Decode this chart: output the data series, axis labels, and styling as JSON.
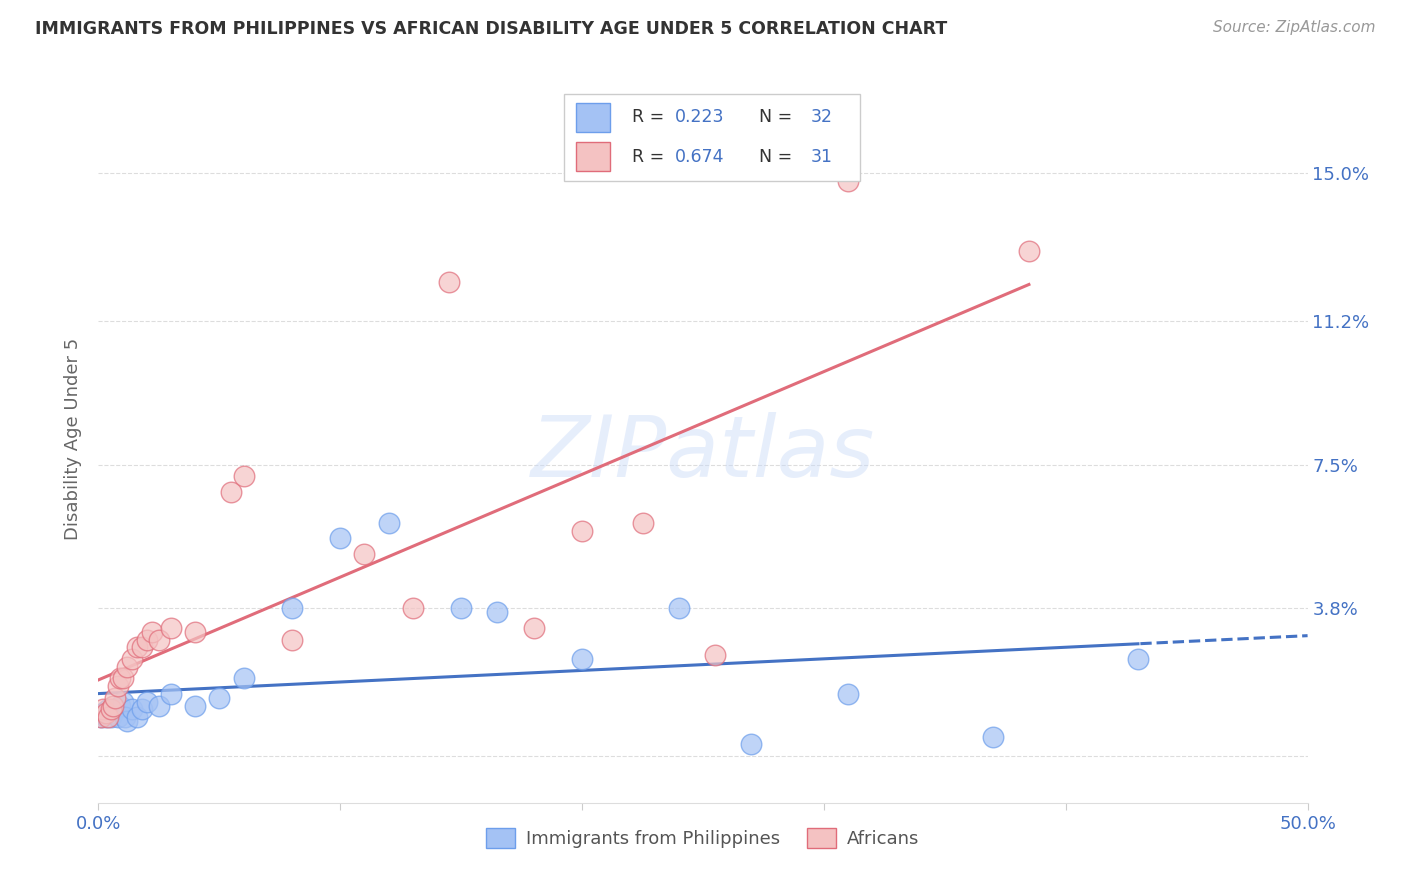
{
  "title": "IMMIGRANTS FROM PHILIPPINES VS AFRICAN DISABILITY AGE UNDER 5 CORRELATION CHART",
  "source": "Source: ZipAtlas.com",
  "ylabel": "Disability Age Under 5",
  "xlim": [
    0.0,
    0.5
  ],
  "ylim": [
    -0.012,
    0.175
  ],
  "yticks": [
    0.0,
    0.038,
    0.075,
    0.112,
    0.15
  ],
  "ytick_labels": [
    "",
    "3.8%",
    "7.5%",
    "11.2%",
    "15.0%"
  ],
  "xtick_positions": [
    0.0,
    0.1,
    0.2,
    0.3,
    0.4,
    0.5
  ],
  "xtick_labels": [
    "0.0%",
    "",
    "",
    "",
    "",
    "50.0%"
  ],
  "blue_r": 0.223,
  "blue_n": 32,
  "pink_r": 0.674,
  "pink_n": 31,
  "blue_scatter_color": "#a4c2f4",
  "pink_scatter_color": "#f4c2c2",
  "blue_edge_color": "#6d9eeb",
  "pink_edge_color": "#e06c7a",
  "line_blue_color": "#4472c4",
  "line_pink_color": "#e06c7a",
  "axis_tick_color": "#4472c4",
  "legend_text_color": "#4472c4",
  "watermark_text": "ZIPatlas",
  "watermark_color": "#c9daf8",
  "blue_x": [
    0.001,
    0.002,
    0.003,
    0.004,
    0.005,
    0.006,
    0.007,
    0.008,
    0.009,
    0.01,
    0.011,
    0.012,
    0.014,
    0.016,
    0.018,
    0.02,
    0.025,
    0.03,
    0.04,
    0.05,
    0.06,
    0.08,
    0.1,
    0.12,
    0.15,
    0.165,
    0.2,
    0.24,
    0.27,
    0.31,
    0.37,
    0.43
  ],
  "blue_y": [
    0.01,
    0.011,
    0.01,
    0.012,
    0.01,
    0.011,
    0.012,
    0.01,
    0.013,
    0.014,
    0.01,
    0.009,
    0.012,
    0.01,
    0.012,
    0.014,
    0.013,
    0.016,
    0.013,
    0.015,
    0.02,
    0.038,
    0.056,
    0.06,
    0.038,
    0.037,
    0.025,
    0.038,
    0.003,
    0.016,
    0.005,
    0.025
  ],
  "pink_x": [
    0.001,
    0.002,
    0.003,
    0.004,
    0.005,
    0.006,
    0.007,
    0.008,
    0.009,
    0.01,
    0.012,
    0.014,
    0.016,
    0.018,
    0.02,
    0.022,
    0.025,
    0.03,
    0.04,
    0.055,
    0.06,
    0.08,
    0.11,
    0.13,
    0.145,
    0.18,
    0.2,
    0.225,
    0.255,
    0.31,
    0.385
  ],
  "pink_y": [
    0.01,
    0.012,
    0.011,
    0.01,
    0.012,
    0.013,
    0.015,
    0.018,
    0.02,
    0.02,
    0.023,
    0.025,
    0.028,
    0.028,
    0.03,
    0.032,
    0.03,
    0.033,
    0.032,
    0.068,
    0.072,
    0.03,
    0.052,
    0.038,
    0.122,
    0.033,
    0.058,
    0.06,
    0.026,
    0.148,
    0.13
  ]
}
